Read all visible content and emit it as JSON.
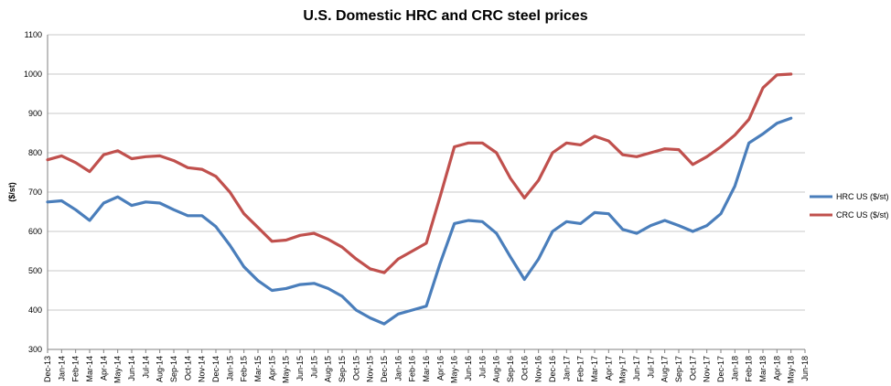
{
  "chart_data": {
    "type": "line",
    "title": "U.S. Domestic HRC and CRC steel prices",
    "ylabel": "($/st)",
    "xlabel": "",
    "ylim": [
      300,
      1100
    ],
    "yticks": [
      "300",
      "400",
      "500",
      "600",
      "700",
      "800",
      "900",
      "1000",
      "1100"
    ],
    "grid": "horizontal",
    "legend": "right",
    "x_ticks": [
      "Dec-13",
      "Jan-14",
      "Feb-14",
      "Mar-14",
      "Apr-14",
      "May-14",
      "Jun-14",
      "Jul-14",
      "Aug-14",
      "Sep-14",
      "Oct-14",
      "Nov-14",
      "Dec-14",
      "Jan-15",
      "Feb-15",
      "Mar-15",
      "Apr-15",
      "May-15",
      "Jun-15",
      "Jul-15",
      "Aug-15",
      "Sep-15",
      "Oct-15",
      "Nov-15",
      "Dec-15",
      "Jan-16",
      "Feb-16",
      "Mar-16",
      "Apr-16",
      "May-16",
      "Jun-16",
      "Jul-16",
      "Aug-16",
      "Sep-16",
      "Oct-16",
      "Nov-16",
      "Dec-16",
      "Jan-17",
      "Feb-17",
      "Mar-17",
      "Apr-17",
      "May-17",
      "Jun-17",
      "Jul-17",
      "Aug-17",
      "Sep-17",
      "Oct-17",
      "Nov-17",
      "Dec-17",
      "Jan-18",
      "Feb-18",
      "Mar-18",
      "Apr-18",
      "May-18",
      "Jun-18"
    ],
    "series": [
      {
        "name": "HRC US ($/st)",
        "color": "#4a7ebb",
        "points": [
          [
            "Dec-13",
            675
          ],
          [
            "Jan-14",
            678
          ],
          [
            "Feb-14",
            655
          ],
          [
            "Mar-14",
            628
          ],
          [
            "Apr-14",
            672
          ],
          [
            "May-14",
            688
          ],
          [
            "Jun-14",
            666
          ],
          [
            "Jul-14",
            675
          ],
          [
            "Aug-14",
            672
          ],
          [
            "Sep-14",
            655
          ],
          [
            "Oct-14",
            640
          ],
          [
            "Nov-14",
            640
          ],
          [
            "Dec-14",
            612
          ],
          [
            "Jan-15",
            565
          ],
          [
            "Feb-15",
            510
          ],
          [
            "Mar-15",
            475
          ],
          [
            "Apr-15",
            450
          ],
          [
            "May-15",
            455
          ],
          [
            "Jun-15",
            465
          ],
          [
            "Jul-15",
            468
          ],
          [
            "Aug-15",
            455
          ],
          [
            "Sep-15",
            435
          ],
          [
            "Oct-15",
            400
          ],
          [
            "Nov-15",
            380
          ],
          [
            "Dec-15",
            365
          ],
          [
            "Jan-16",
            390
          ],
          [
            "Feb-16",
            400
          ],
          [
            "Mar-16",
            410
          ],
          [
            "Apr-16",
            520
          ],
          [
            "May-16",
            620
          ],
          [
            "Jun-16",
            628
          ],
          [
            "Jul-16",
            625
          ],
          [
            "Aug-16",
            595
          ],
          [
            "Sep-16",
            535
          ],
          [
            "Oct-16",
            478
          ],
          [
            "Nov-16",
            530
          ],
          [
            "Dec-16",
            600
          ],
          [
            "Jan-17",
            625
          ],
          [
            "Feb-17",
            620
          ],
          [
            "Mar-17",
            648
          ],
          [
            "Apr-17",
            645
          ],
          [
            "May-17",
            605
          ],
          [
            "Jun-17",
            595
          ],
          [
            "Jul-17",
            615
          ],
          [
            "Aug-17",
            628
          ],
          [
            "Sep-17",
            615
          ],
          [
            "Oct-17",
            600
          ],
          [
            "Nov-17",
            615
          ],
          [
            "Dec-17",
            645
          ],
          [
            "Jan-18",
            715
          ],
          [
            "Feb-18",
            825
          ],
          [
            "Mar-18",
            848
          ],
          [
            "Apr-18",
            875
          ],
          [
            "May-18",
            888
          ]
        ]
      },
      {
        "name": "CRC US ($/st)",
        "color": "#c0504d",
        "points": [
          [
            "Dec-13",
            782
          ],
          [
            "Jan-14",
            792
          ],
          [
            "Feb-14",
            775
          ],
          [
            "Mar-14",
            752
          ],
          [
            "Apr-14",
            795
          ],
          [
            "May-14",
            805
          ],
          [
            "Jun-14",
            785
          ],
          [
            "Jul-14",
            790
          ],
          [
            "Aug-14",
            792
          ],
          [
            "Sep-14",
            780
          ],
          [
            "Oct-14",
            762
          ],
          [
            "Nov-14",
            758
          ],
          [
            "Dec-14",
            740
          ],
          [
            "Jan-15",
            700
          ],
          [
            "Feb-15",
            645
          ],
          [
            "Mar-15",
            610
          ],
          [
            "Apr-15",
            575
          ],
          [
            "May-15",
            578
          ],
          [
            "Jun-15",
            590
          ],
          [
            "Jul-15",
            595
          ],
          [
            "Aug-15",
            580
          ],
          [
            "Sep-15",
            560
          ],
          [
            "Oct-15",
            530
          ],
          [
            "Nov-15",
            505
          ],
          [
            "Dec-15",
            495
          ],
          [
            "Jan-16",
            530
          ],
          [
            "Feb-16",
            550
          ],
          [
            "Mar-16",
            570
          ],
          [
            "Apr-16",
            690
          ],
          [
            "May-16",
            815
          ],
          [
            "Jun-16",
            825
          ],
          [
            "Jul-16",
            825
          ],
          [
            "Aug-16",
            800
          ],
          [
            "Sep-16",
            735
          ],
          [
            "Oct-16",
            685
          ],
          [
            "Nov-16",
            730
          ],
          [
            "Dec-16",
            800
          ],
          [
            "Jan-17",
            825
          ],
          [
            "Feb-17",
            820
          ],
          [
            "Mar-17",
            842
          ],
          [
            "Apr-17",
            830
          ],
          [
            "May-17",
            795
          ],
          [
            "Jun-17",
            790
          ],
          [
            "Jul-17",
            800
          ],
          [
            "Aug-17",
            810
          ],
          [
            "Sep-17",
            808
          ],
          [
            "Oct-17",
            770
          ],
          [
            "Nov-17",
            790
          ],
          [
            "Dec-17",
            815
          ],
          [
            "Jan-18",
            845
          ],
          [
            "Feb-18",
            885
          ],
          [
            "Mar-18",
            965
          ],
          [
            "Apr-18",
            998
          ],
          [
            "May-18",
            1000
          ]
        ]
      }
    ]
  }
}
